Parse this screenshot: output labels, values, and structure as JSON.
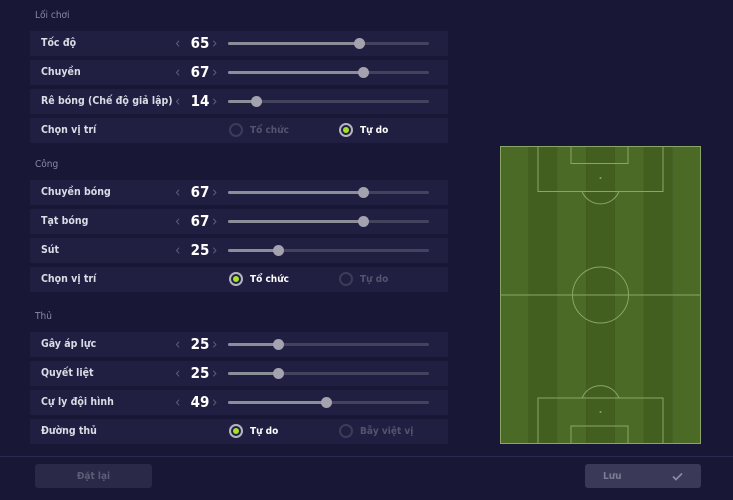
{
  "sections": [
    {
      "title": "Lối chơi",
      "rows": [
        {
          "type": "slider",
          "label": "Tốc độ",
          "value": 65
        },
        {
          "type": "slider",
          "label": "Chuyền",
          "value": 67
        },
        {
          "type": "slider",
          "label": "Rê bóng (Chế độ giả lập)",
          "value": 14
        },
        {
          "type": "radio",
          "label": "Chọn vị trí",
          "options": [
            "Tổ chức",
            "Tự do"
          ],
          "selected": 1
        }
      ]
    },
    {
      "title": "Công",
      "rows": [
        {
          "type": "slider",
          "label": "Chuyền bóng",
          "value": 67
        },
        {
          "type": "slider",
          "label": "Tạt bóng",
          "value": 67
        },
        {
          "type": "slider",
          "label": "Sút",
          "value": 25
        },
        {
          "type": "radio",
          "label": "Chọn vị trí",
          "options": [
            "Tổ chức",
            "Tự do"
          ],
          "selected": 0
        }
      ]
    },
    {
      "title": "Thủ",
      "rows": [
        {
          "type": "slider",
          "label": "Gây áp lực",
          "value": 25
        },
        {
          "type": "slider",
          "label": "Quyết liệt",
          "value": 25
        },
        {
          "type": "slider",
          "label": "Cự ly đội hình",
          "value": 49
        },
        {
          "type": "radio",
          "label": "Đường thủ",
          "options": [
            "Tự do",
            "Bẫy việt vị"
          ],
          "selected": 0
        }
      ]
    }
  ],
  "slider_range": [
    0,
    100
  ],
  "footer": {
    "reset_label": "Đặt lại",
    "save_label": "Lưu",
    "save_icon": "check-icon"
  },
  "colors": {
    "accent": "#a6e22a",
    "pitch_dark": "#435f1f",
    "pitch_light": "#4b6a25"
  }
}
